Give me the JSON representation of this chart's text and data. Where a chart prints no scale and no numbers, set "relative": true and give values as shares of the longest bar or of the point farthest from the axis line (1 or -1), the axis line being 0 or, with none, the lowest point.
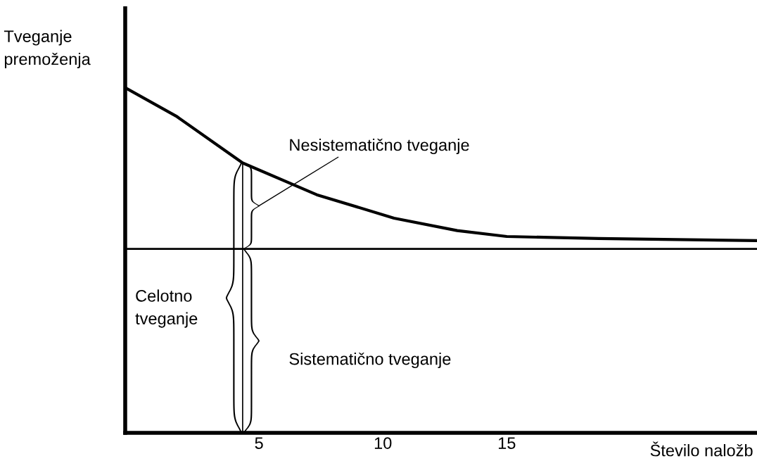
{
  "chart_data": {
    "type": "line",
    "relative": true,
    "xlabel": "Število naložb",
    "ylabel": "Tveganje\npremoženja",
    "x": [
      -0.4,
      1.65,
      4.34,
      7.33,
      10.45,
      13.0,
      15.0,
      18.7,
      25.1
    ],
    "series": [
      {
        "color": "#000000",
        "values": [
          1.0,
          0.918,
          0.782,
          0.69,
          0.622,
          0.586,
          0.569,
          0.563,
          0.557
        ]
      }
    ],
    "xlim": [
      -0.4,
      25.1
    ],
    "xticks": [
      5,
      10,
      15
    ],
    "ref_lines": [
      {
        "axis": "y",
        "value": 0.533,
        "color": "#000000"
      },
      {
        "axis": "x",
        "value": 4.34,
        "color": "#000000"
      }
    ],
    "annotations": [
      "Nesistematično tveganje",
      "Celotno\ntveganje",
      "Sistematično tveganje"
    ],
    "grid": false,
    "marker": "none",
    "line_style": "solid"
  }
}
